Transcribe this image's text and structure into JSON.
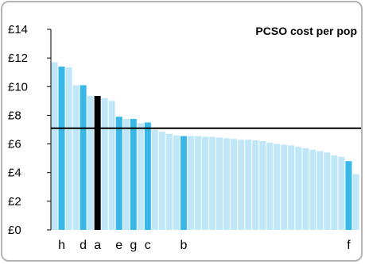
{
  "chart_data": {
    "type": "bar",
    "title": "PCSO cost per pop",
    "y_tick_labels": [
      "£0",
      "£2",
      "£4",
      "£6",
      "£8",
      "£10",
      "£12",
      "£14"
    ],
    "ylim": [
      0,
      14
    ],
    "reference_line": 7.1,
    "values": [
      11.7,
      11.4,
      11.35,
      10.1,
      10.1,
      9.35,
      9.35,
      9.2,
      9.0,
      7.9,
      7.75,
      7.75,
      7.45,
      7.5,
      7.0,
      6.85,
      6.7,
      6.6,
      6.55,
      6.55,
      6.55,
      6.5,
      6.5,
      6.45,
      6.4,
      6.35,
      6.3,
      6.3,
      6.25,
      6.2,
      6.1,
      6.0,
      5.95,
      5.9,
      5.8,
      5.7,
      5.6,
      5.5,
      5.4,
      5.2,
      5.1,
      4.8,
      3.9
    ],
    "bar_roles": [
      "light",
      "highlight",
      "light",
      "light",
      "highlight",
      "light",
      "selected",
      "light",
      "light",
      "highlight",
      "light",
      "highlight",
      "light",
      "highlight",
      "light",
      "light",
      "light",
      "light",
      "highlight",
      "light",
      "light",
      "light",
      "light",
      "light",
      "light",
      "light",
      "light",
      "light",
      "light",
      "light",
      "light",
      "light",
      "light",
      "light",
      "light",
      "light",
      "light",
      "light",
      "light",
      "light",
      "light",
      "highlight",
      "light"
    ],
    "category_labels": [
      {
        "index": 1,
        "label": "h"
      },
      {
        "index": 4,
        "label": "d"
      },
      {
        "index": 6,
        "label": "a"
      },
      {
        "index": 9,
        "label": "e"
      },
      {
        "index": 11,
        "label": "g"
      },
      {
        "index": 13,
        "label": "c"
      },
      {
        "index": 18,
        "label": "b"
      },
      {
        "index": 41,
        "label": "f"
      }
    ],
    "colors": {
      "light": "#bfe7f8",
      "highlight": "#39b7e6",
      "selected": "#000000",
      "reference_line": "#000000",
      "axis": "#000000"
    },
    "grid": false
  }
}
